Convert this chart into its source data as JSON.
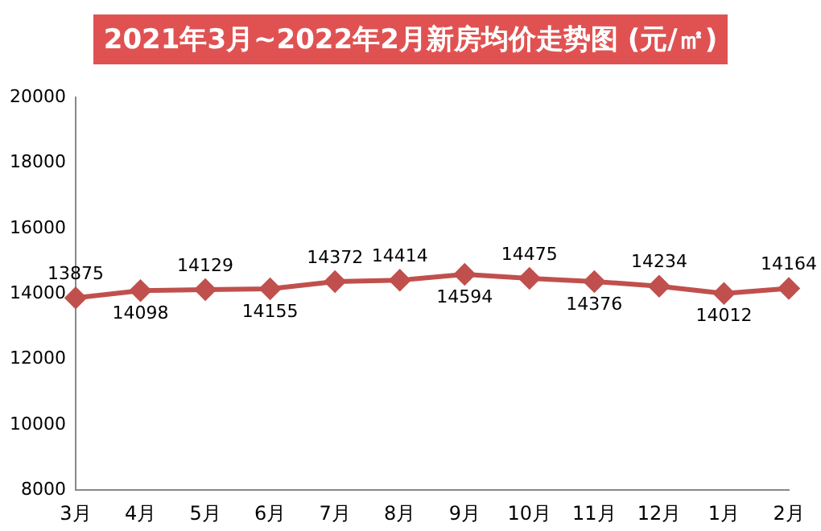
{
  "chart_data": {
    "type": "line",
    "title": "2021年3月~2022年2月新房均价走势图 (元/㎡)",
    "categories": [
      "3月",
      "4月",
      "5月",
      "6月",
      "7月",
      "8月",
      "9月",
      "10月",
      "11月",
      "12月",
      "1月",
      "2月"
    ],
    "series": [
      {
        "color": "#c0504d",
        "values": [
          13875,
          14098,
          14129,
          14155,
          14372,
          14414,
          14594,
          14475,
          14376,
          14234,
          14012,
          14164
        ]
      }
    ],
    "ylim": [
      8000,
      20000
    ],
    "yticks": [
      8000,
      10000,
      12000,
      14000,
      16000,
      18000,
      20000
    ],
    "grid": false,
    "legend": false,
    "marker": "diamond",
    "line_style": "solid",
    "data_labels": true
  }
}
